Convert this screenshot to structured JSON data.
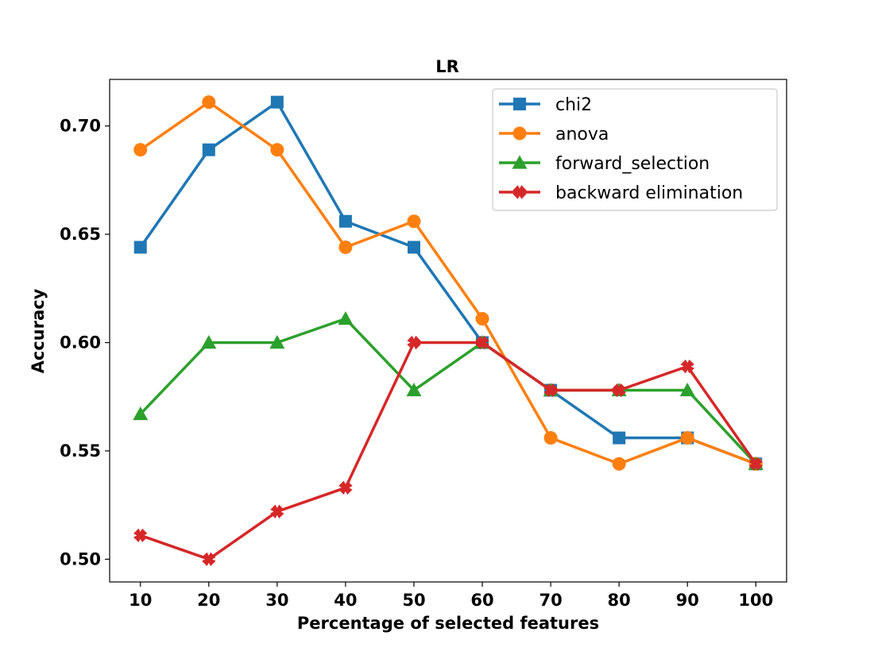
{
  "chart_data": {
    "type": "line",
    "title": "LR",
    "xlabel": "Percentage of selected features",
    "ylabel": "Accuracy",
    "x": [
      10,
      20,
      30,
      40,
      50,
      60,
      70,
      80,
      90,
      100
    ],
    "xticks": [
      "10",
      "20",
      "30",
      "40",
      "50",
      "60",
      "70",
      "80",
      "90",
      "100"
    ],
    "yticks": [
      0.5,
      0.55,
      0.6,
      0.65,
      0.7
    ],
    "ytick_labels": [
      "0.50",
      "0.55",
      "0.60",
      "0.65",
      "0.70"
    ],
    "xlim": [
      5.5,
      104.5
    ],
    "ylim": [
      0.4895,
      0.7215
    ],
    "grid": false,
    "legend_position": "upper right",
    "series": [
      {
        "name": "chi2",
        "color": "#1f77b4",
        "marker": "square",
        "values": [
          0.644,
          0.689,
          0.711,
          0.656,
          0.644,
          0.6,
          0.578,
          0.556,
          0.556,
          0.544
        ]
      },
      {
        "name": "anova",
        "color": "#ff7f0e",
        "marker": "circle",
        "values": [
          0.689,
          0.711,
          0.689,
          0.644,
          0.656,
          0.611,
          0.556,
          0.544,
          0.556,
          0.544
        ]
      },
      {
        "name": "forward_selection",
        "color": "#2ca02c",
        "marker": "triangle",
        "values": [
          0.567,
          0.6,
          0.6,
          0.611,
          0.578,
          0.6,
          0.578,
          0.578,
          0.578,
          0.544
        ]
      },
      {
        "name": "backward elimination",
        "color": "#d62728",
        "marker": "x",
        "values": [
          0.511,
          0.5,
          0.522,
          0.533,
          0.6,
          0.6,
          0.578,
          0.578,
          0.589,
          0.544
        ]
      }
    ]
  }
}
